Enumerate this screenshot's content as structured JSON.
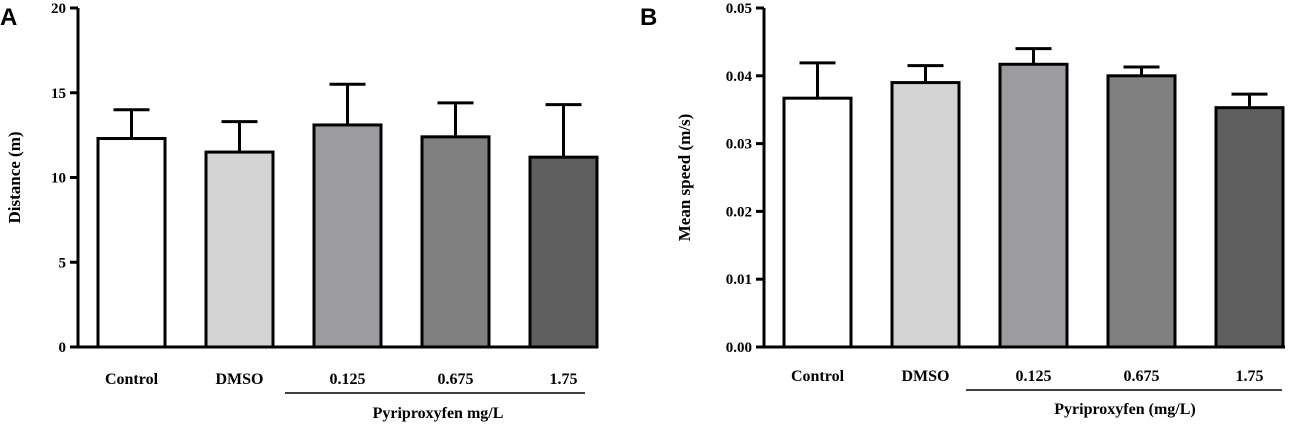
{
  "chart_data": [
    {
      "type": "bar",
      "panel": "A",
      "title": "",
      "xlabel": "",
      "ylabel": "Distance (m)",
      "ylim": [
        0,
        20
      ],
      "yticks": [
        "0",
        "5",
        "10",
        "15",
        "20"
      ],
      "categories": [
        "Control",
        "DMSO",
        "0.125",
        "0.675",
        "1.75"
      ],
      "values": [
        12.3,
        11.5,
        13.1,
        12.4,
        11.2
      ],
      "errors": [
        1.7,
        1.8,
        2.4,
        2.0,
        3.1
      ],
      "colors": [
        "#ffffff",
        "#d4d4d4",
        "#9c9ca0",
        "#808080",
        "#5f5f5f"
      ],
      "group_label": "Pyriproxyfen mg/L",
      "group_categories": [
        "0.125",
        "0.675",
        "1.75"
      ],
      "grid": false
    },
    {
      "type": "bar",
      "panel": "B",
      "title": "",
      "xlabel": "",
      "ylabel": "Mean speed (m/s)",
      "ylim": [
        0,
        0.05
      ],
      "yticks": [
        "0.00",
        "0.01",
        "0.02",
        "0.03",
        "0.04",
        "0.05"
      ],
      "categories": [
        "Control",
        "DMSO",
        "0.125",
        "0.675",
        "1.75"
      ],
      "values": [
        0.0367,
        0.039,
        0.0417,
        0.04,
        0.0353
      ],
      "errors": [
        0.0052,
        0.0025,
        0.0023,
        0.0013,
        0.002
      ],
      "colors": [
        "#ffffff",
        "#d4d4d4",
        "#9c9ca0",
        "#808080",
        "#5f5f5f"
      ],
      "group_label": "Pyriproxyfen (mg/L)",
      "group_categories": [
        "0.125",
        "0.675",
        "1.75"
      ],
      "grid": false
    }
  ]
}
